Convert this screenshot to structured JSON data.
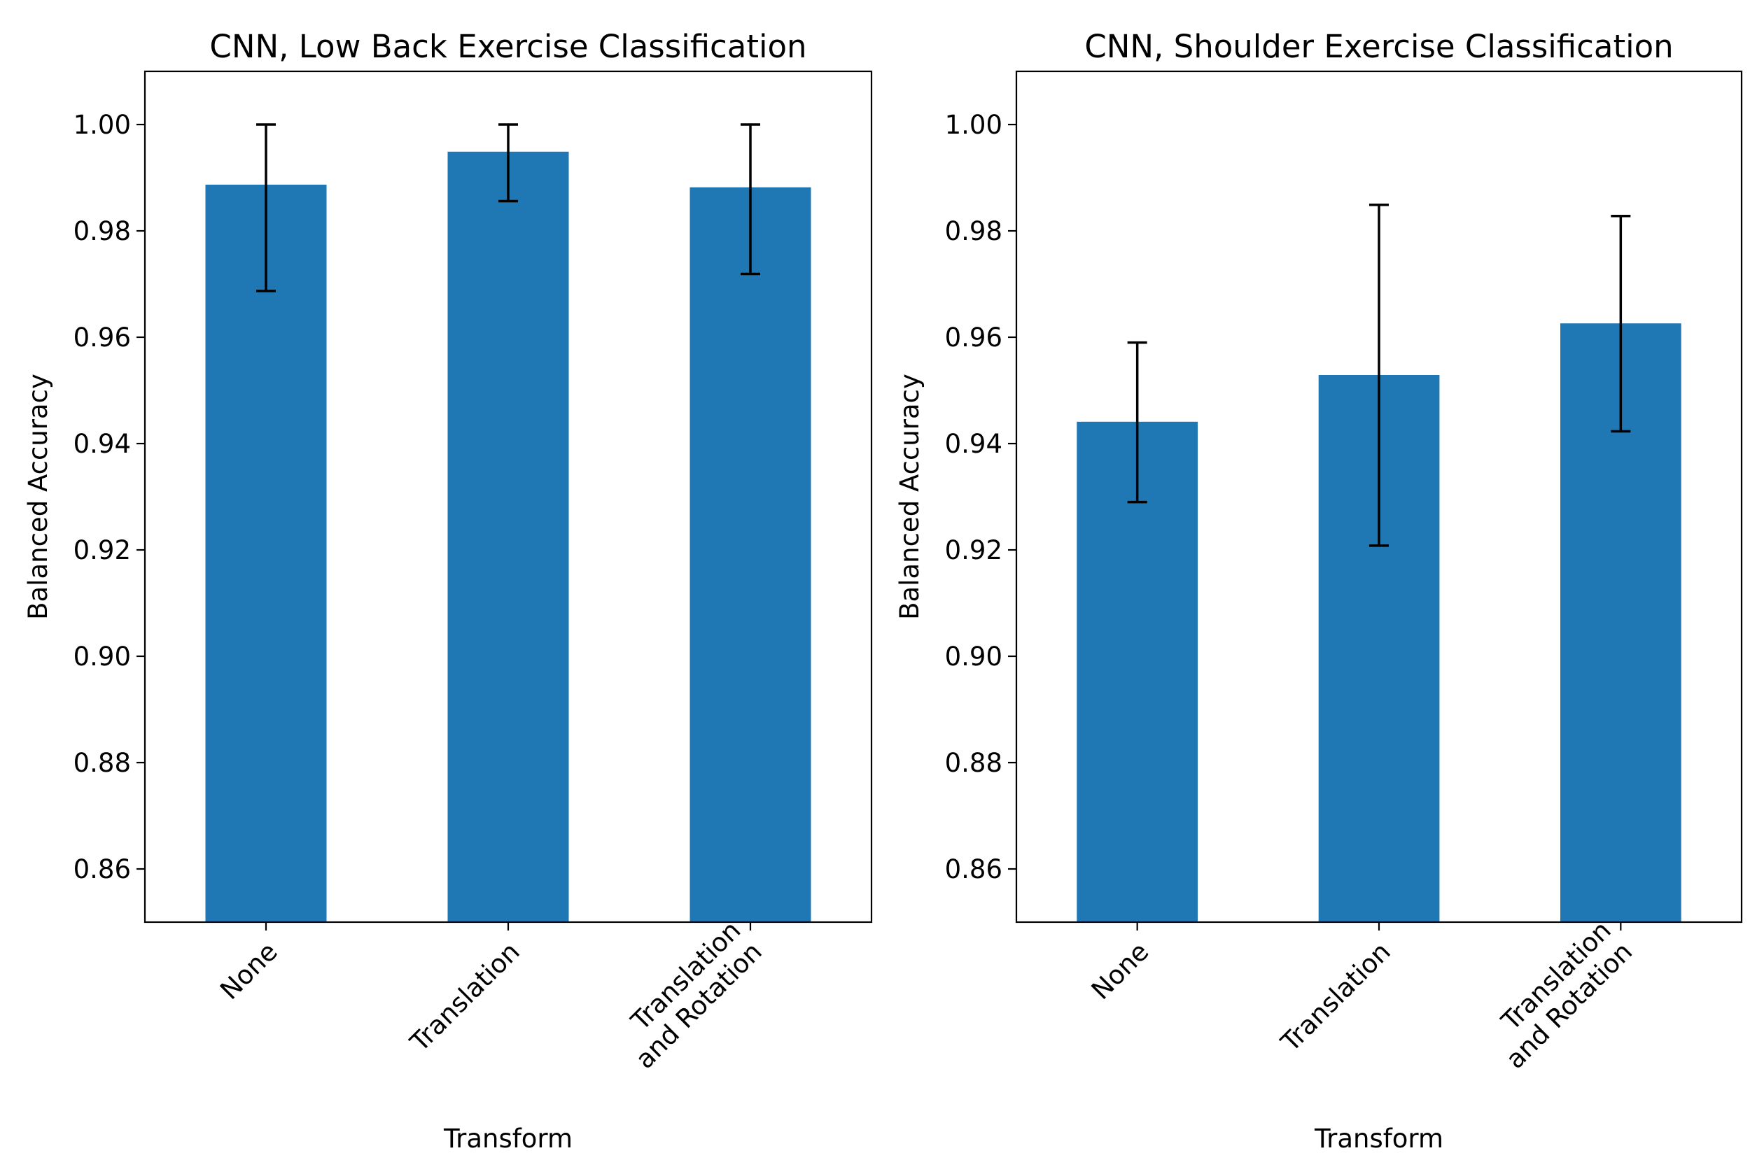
{
  "figure": {
    "bar_color": "#1f77b4",
    "error_color": "#000000"
  },
  "chart_data": [
    {
      "type": "bar",
      "title": "CNN, Low Back Exercise Classification",
      "xlabel": "Transform",
      "ylabel": "Balanced Accuracy",
      "categories": [
        [
          "None"
        ],
        [
          "Translation"
        ],
        [
          "Translation",
          "and Rotation"
        ]
      ],
      "values": [
        0.9887,
        0.9949,
        0.9882
      ],
      "error_low": [
        0.9687,
        0.9856,
        0.9719
      ],
      "error_high": [
        1.0,
        1.0,
        1.0
      ],
      "ylim": [
        0.85,
        1.01
      ],
      "yticks": [
        0.86,
        0.88,
        0.9,
        0.92,
        0.94,
        0.96,
        0.98,
        1.0
      ],
      "ytick_labels": [
        "0.86",
        "0.88",
        "0.90",
        "0.92",
        "0.94",
        "0.96",
        "0.98",
        "1.00"
      ],
      "grid": false
    },
    {
      "type": "bar",
      "title": "CNN, Shoulder Exercise Classification",
      "xlabel": "Transform",
      "ylabel": "Balanced Accuracy",
      "categories": [
        [
          "None"
        ],
        [
          "Translation"
        ],
        [
          "Translation",
          "and Rotation"
        ]
      ],
      "values": [
        0.9441,
        0.9529,
        0.9626
      ],
      "error_low": [
        0.929,
        0.9208,
        0.9423
      ],
      "error_high": [
        0.959,
        0.9849,
        0.9828
      ],
      "ylim": [
        0.85,
        1.01
      ],
      "yticks": [
        0.86,
        0.88,
        0.9,
        0.92,
        0.94,
        0.96,
        0.98,
        1.0
      ],
      "ytick_labels": [
        "0.86",
        "0.88",
        "0.90",
        "0.92",
        "0.94",
        "0.96",
        "0.98",
        "1.00"
      ],
      "grid": false
    }
  ]
}
